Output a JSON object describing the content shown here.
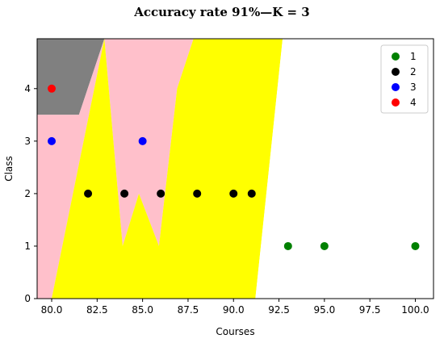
{
  "chart_data": {
    "type": "scatter",
    "title": "Accuracy rate 91%—K = 3",
    "xlabel": "Courses",
    "ylabel": "Class",
    "xlim": [
      79.2,
      101.0
    ],
    "ylim": [
      0,
      4.95
    ],
    "x_ticks": [
      "80.0",
      "82.5",
      "85.0",
      "87.5",
      "90.0",
      "92.5",
      "95.0",
      "97.5",
      "100.0"
    ],
    "x_tick_values": [
      80,
      82.5,
      85,
      87.5,
      90,
      92.5,
      95,
      97.5,
      100
    ],
    "y_ticks": [
      "0",
      "1",
      "2",
      "3",
      "4"
    ],
    "y_tick_values": [
      0,
      1,
      2,
      3,
      4
    ],
    "grid": false,
    "legend_position": "top-right",
    "series": [
      {
        "name": "1",
        "color": "#008000",
        "points": [
          [
            93,
            1
          ],
          [
            95,
            1
          ],
          [
            100,
            1
          ]
        ]
      },
      {
        "name": "2",
        "color": "#000000",
        "points": [
          [
            82,
            2
          ],
          [
            84,
            2
          ],
          [
            86,
            2
          ],
          [
            88,
            2
          ],
          [
            90,
            2
          ],
          [
            91,
            2
          ]
        ]
      },
      {
        "name": "3",
        "color": "#0000ff",
        "points": [
          [
            80,
            3
          ],
          [
            85,
            3
          ]
        ]
      },
      {
        "name": "4",
        "color": "#ff0000",
        "points": [
          [
            80,
            4
          ]
        ]
      }
    ],
    "decision_regions": [
      {
        "class": "4",
        "color": "#808080",
        "polygon": [
          [
            79.2,
            4.95
          ],
          [
            82.9,
            4.95
          ],
          [
            81.5,
            3.5
          ],
          [
            79.2,
            3.5
          ]
        ]
      },
      {
        "class": "3",
        "color": "#ffc0cb",
        "polygon": [
          [
            79.2,
            3.5
          ],
          [
            81.5,
            3.5
          ],
          [
            82.9,
            4.95
          ],
          [
            87.8,
            4.95
          ],
          [
            86.9,
            4.0
          ],
          [
            85.9,
            1.0
          ],
          [
            84.8,
            2.0
          ],
          [
            83.9,
            1.0
          ],
          [
            82.9,
            4.95
          ],
          [
            82.9,
            4.95
          ],
          [
            80.0,
            0
          ],
          [
            79.2,
            0
          ]
        ]
      },
      {
        "class": "2",
        "color": "#ffff00",
        "polygon": [
          [
            80.0,
            0
          ],
          [
            82.9,
            4.95
          ],
          [
            83.9,
            1.0
          ],
          [
            84.8,
            2.0
          ],
          [
            85.9,
            1.0
          ],
          [
            86.9,
            4.0
          ],
          [
            87.8,
            4.95
          ],
          [
            92.7,
            4.95
          ],
          [
            91.2,
            0
          ]
        ]
      },
      {
        "class": "1",
        "color": "#ffffff",
        "polygon": [
          [
            91.2,
            0
          ],
          [
            92.7,
            4.95
          ],
          [
            101.0,
            4.95
          ],
          [
            101.0,
            0
          ]
        ]
      }
    ]
  }
}
